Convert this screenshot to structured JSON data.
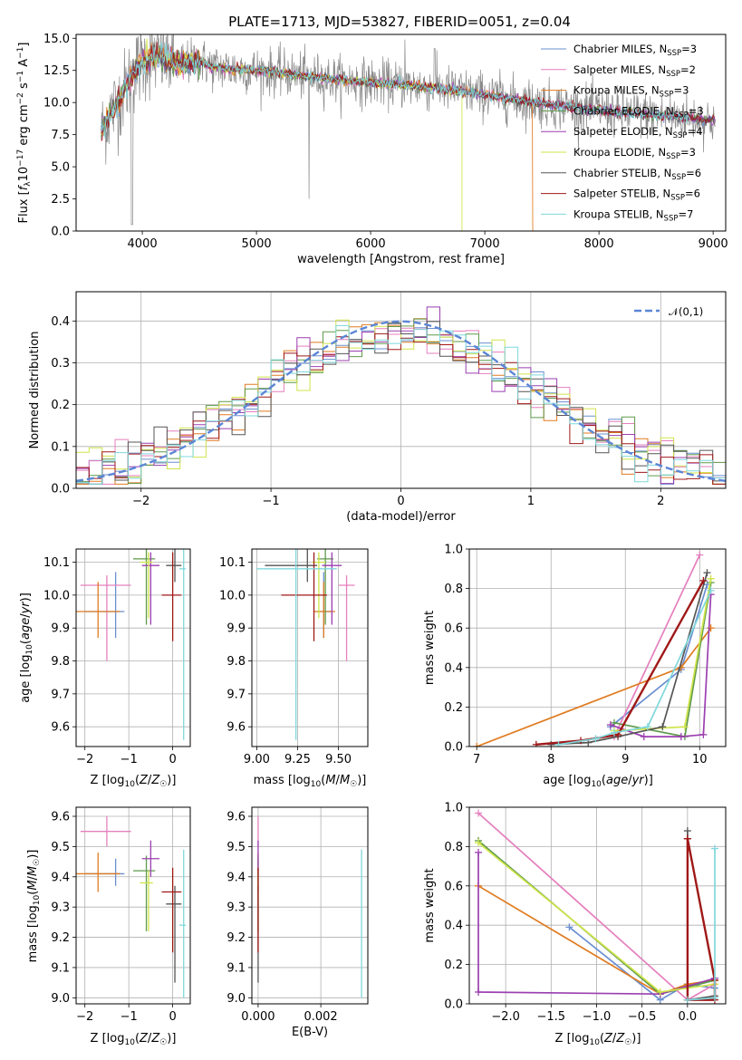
{
  "figure": {
    "title": "PLATE=1713, MJD=53827, FIBERID=0051, z=0.04"
  },
  "series_styles": [
    {
      "name": "Chabrier MILES, N_SSP=3",
      "color": "#6a8fd0"
    },
    {
      "name": "Salpeter MILES, N_SSP=2",
      "color": "#e57fbe"
    },
    {
      "name": "Kroupa MILES, N_SSP=3",
      "color": "#e07b20"
    },
    {
      "name": "Chabrier ELODIE, N_SSP=3",
      "color": "#5f9a4a"
    },
    {
      "name": "Salpeter ELODIE, N_SSP=4",
      "color": "#9b3fb0"
    },
    {
      "name": "Kroupa ELODIE, N_SSP=3",
      "color": "#d0e44a"
    },
    {
      "name": "Chabrier STELIB, N_SSP=6",
      "color": "#555555"
    },
    {
      "name": "Salpeter STELIB, N_SSP=6",
      "color": "#a01818"
    },
    {
      "name": "Kroupa STELIB, N_SSP=7",
      "color": "#7fd8dc"
    }
  ],
  "chart_data": [
    {
      "id": "spectrum",
      "type": "line",
      "title": "PLATE=1713, MJD=53827, FIBERID=0051, z=0.04",
      "xlabel": "wavelength [Angstrom, rest frame]",
      "ylabel": "Flux [f_λ 10^-17 erg cm^-2 s^-1 A^-1]",
      "xlim": [
        3420,
        9110
      ],
      "ylim": [
        0,
        15.3
      ],
      "xticks": [
        4000,
        5000,
        6000,
        7000,
        8000,
        9000
      ],
      "yticks": [
        0.0,
        2.5,
        5.0,
        7.5,
        10.0,
        12.5,
        15.0
      ],
      "legend_position": "top-right",
      "continuum": {
        "x": [
          3640,
          3700,
          3800,
          3900,
          4000,
          4100,
          4200,
          4300,
          4400,
          4500,
          4600,
          4800,
          5000,
          5200,
          5500,
          5800,
          6100,
          6400,
          6700,
          7000,
          7300,
          7600,
          7900,
          8200,
          8500,
          8800,
          9020
        ],
        "y": [
          7.6,
          8.9,
          10.2,
          12.0,
          13.2,
          13.6,
          13.4,
          13.0,
          13.1,
          13.3,
          12.8,
          12.6,
          12.5,
          12.3,
          12.0,
          11.7,
          11.5,
          11.3,
          11.0,
          10.6,
          10.2,
          9.8,
          9.5,
          9.2,
          9.0,
          8.8,
          8.6
        ]
      }
    },
    {
      "id": "residuals",
      "type": "histogram",
      "xlabel": "(data-model)/error",
      "ylabel": "Normed distribution",
      "xlim": [
        -2.5,
        2.5
      ],
      "ylim": [
        0,
        0.47
      ],
      "xticks": [
        -2,
        -1,
        0,
        1,
        2
      ],
      "yticks": [
        0.0,
        0.1,
        0.2,
        0.3,
        0.4
      ],
      "legend": [
        "𝒩(0,1)"
      ],
      "legend_position": "top-right",
      "bin_width": 0.1,
      "base_density": "normal(0,1)"
    },
    {
      "id": "age_vs_Z",
      "type": "errorbar",
      "xlabel": "Z [log10(Z/Z☉)]",
      "ylabel": "age [log10(age/yr)]",
      "xlim": [
        -2.2,
        0.4
      ],
      "ylim": [
        9.54,
        10.14
      ],
      "xticks": [
        -2,
        -1,
        0
      ],
      "yticks": [
        9.6,
        9.7,
        9.8,
        9.9,
        10.0,
        10.1
      ],
      "points": [
        {
          "x": -1.3,
          "xerr": [
            0.7,
            0.2
          ],
          "y": 9.95,
          "yerr": [
            0.08,
            0.12
          ],
          "s": 0
        },
        {
          "x": -1.5,
          "xerr": [
            0.6,
            0.55
          ],
          "y": 10.03,
          "yerr": [
            0.23,
            0.03
          ],
          "s": 1
        },
        {
          "x": -1.7,
          "xerr": [
            0.5,
            0.5
          ],
          "y": 9.95,
          "yerr": [
            0.08,
            0.09
          ],
          "s": 2
        },
        {
          "x": -0.6,
          "xerr": [
            0.3,
            0.2
          ],
          "y": 10.11,
          "yerr": [
            0.2,
            0.03
          ],
          "s": 3
        },
        {
          "x": -0.5,
          "xerr": [
            0.2,
            0.2
          ],
          "y": 10.09,
          "yerr": [
            0.18,
            0.04
          ],
          "s": 4
        },
        {
          "x": -0.55,
          "xerr": [
            0.2,
            0.1
          ],
          "y": 10.1,
          "yerr": [
            0.17,
            0.03
          ],
          "s": 5
        },
        {
          "x": 0.05,
          "xerr": [
            0.2,
            0.15
          ],
          "y": 10.09,
          "yerr": [
            0.05,
            0.05
          ],
          "s": 6
        },
        {
          "x": 0.0,
          "xerr": [
            0.25,
            0.2
          ],
          "y": 10.0,
          "yerr": [
            0.14,
            0.13
          ],
          "s": 7
        },
        {
          "x": 0.25,
          "xerr": [
            0.1,
            0.05
          ],
          "y": 10.08,
          "yerr": [
            0.52,
            0.07
          ],
          "s": 8
        }
      ]
    },
    {
      "id": "age_vs_mass",
      "type": "errorbar",
      "xlabel": "mass [log10(M/M☉)]",
      "ylabel": "",
      "xlim": [
        8.97,
        9.68
      ],
      "ylim": [
        9.54,
        10.14
      ],
      "xticks": [
        9.0,
        9.25,
        9.5
      ],
      "yticks": [
        9.6,
        9.7,
        9.8,
        9.9,
        10.0,
        10.1
      ],
      "points": [
        {
          "x": 9.41,
          "xerr": [
            0.04,
            0.05
          ],
          "y": 9.95,
          "yerr": [
            0.08,
            0.12
          ],
          "s": 0
        },
        {
          "x": 9.55,
          "xerr": [
            0.05,
            0.05
          ],
          "y": 10.03,
          "yerr": [
            0.23,
            0.03
          ],
          "s": 1
        },
        {
          "x": 9.41,
          "xerr": [
            0.06,
            0.07
          ],
          "y": 9.95,
          "yerr": [
            0.08,
            0.09
          ],
          "s": 2
        },
        {
          "x": 9.42,
          "xerr": [
            0.05,
            0.05
          ],
          "y": 10.11,
          "yerr": [
            0.2,
            0.03
          ],
          "s": 3
        },
        {
          "x": 9.46,
          "xerr": [
            0.06,
            0.06
          ],
          "y": 10.09,
          "yerr": [
            0.18,
            0.04
          ],
          "s": 4
        },
        {
          "x": 9.38,
          "xerr": [
            0.04,
            0.04
          ],
          "y": 10.1,
          "yerr": [
            0.17,
            0.03
          ],
          "s": 5
        },
        {
          "x": 9.31,
          "xerr": [
            0.26,
            0.06
          ],
          "y": 10.09,
          "yerr": [
            0.05,
            0.05
          ],
          "s": 6
        },
        {
          "x": 9.35,
          "xerr": [
            0.2,
            0.08
          ],
          "y": 10.0,
          "yerr": [
            0.14,
            0.13
          ],
          "s": 7
        },
        {
          "x": 9.24,
          "xerr": [
            0.24,
            0.25
          ],
          "y": 10.08,
          "yerr": [
            0.52,
            0.07
          ],
          "s": 8
        }
      ]
    },
    {
      "id": "weight_vs_age",
      "type": "line",
      "xlabel": "age [log10(age/yr)]",
      "ylabel": "mass weight",
      "xlim": [
        6.9,
        10.35
      ],
      "ylim": [
        0,
        1.0
      ],
      "xticks": [
        7,
        8,
        9,
        10
      ],
      "yticks": [
        0.0,
        0.2,
        0.4,
        0.6,
        0.8,
        1.0
      ],
      "series": [
        {
          "s": 0,
          "x": [
            8.8,
            9.75,
            10.1
          ],
          "y": [
            0.1,
            0.39,
            0.82
          ]
        },
        {
          "s": 1,
          "x": [
            8.85,
            10.0
          ],
          "y": [
            0.05,
            0.97
          ]
        },
        {
          "s": 2,
          "x": [
            7.0,
            9.75,
            10.15
          ],
          "y": [
            0.0,
            0.4,
            0.6
          ]
        },
        {
          "s": 3,
          "x": [
            8.85,
            9.8,
            10.15
          ],
          "y": [
            0.12,
            0.05,
            0.83
          ]
        },
        {
          "s": 4,
          "x": [
            8.8,
            9.25,
            9.75,
            10.05,
            10.15
          ],
          "y": [
            0.11,
            0.05,
            0.05,
            0.06,
            0.77
          ]
        },
        {
          "s": 5,
          "x": [
            8.85,
            9.8,
            10.15
          ],
          "y": [
            0.08,
            0.1,
            0.85
          ]
        },
        {
          "s": 6,
          "x": [
            8.0,
            8.5,
            8.9,
            9.5,
            10.1
          ],
          "y": [
            0.01,
            0.02,
            0.05,
            0.1,
            0.88
          ]
        },
        {
          "s": 7,
          "x": [
            7.8,
            8.4,
            8.9,
            10.05
          ],
          "y": [
            0.01,
            0.03,
            0.06,
            0.84
          ]
        },
        {
          "s": 8,
          "x": [
            8.1,
            8.6,
            8.85,
            9.3,
            10.15
          ],
          "y": [
            0.01,
            0.04,
            0.07,
            0.1,
            0.79
          ]
        }
      ]
    },
    {
      "id": "mass_vs_Z",
      "type": "errorbar",
      "xlabel": "Z [log10(Z/Z☉)]",
      "ylabel": "mass [log10(M/M☉)]",
      "xlim": [
        -2.2,
        0.4
      ],
      "ylim": [
        8.98,
        9.63
      ],
      "xticks": [
        -2,
        -1,
        0
      ],
      "yticks": [
        9.0,
        9.1,
        9.2,
        9.3,
        9.4,
        9.5,
        9.6
      ],
      "points": [
        {
          "x": -1.3,
          "xerr": [
            0.7,
            0.2
          ],
          "y": 9.41,
          "yerr": [
            0.04,
            0.05
          ],
          "s": 0
        },
        {
          "x": -1.5,
          "xerr": [
            0.6,
            0.55
          ],
          "y": 9.55,
          "yerr": [
            0.05,
            0.05
          ],
          "s": 1
        },
        {
          "x": -1.7,
          "xerr": [
            0.5,
            0.5
          ],
          "y": 9.41,
          "yerr": [
            0.06,
            0.07
          ],
          "s": 2
        },
        {
          "x": -0.6,
          "xerr": [
            0.3,
            0.2
          ],
          "y": 9.42,
          "yerr": [
            0.2,
            0.05
          ],
          "s": 3
        },
        {
          "x": -0.5,
          "xerr": [
            0.2,
            0.2
          ],
          "y": 9.46,
          "yerr": [
            0.06,
            0.06
          ],
          "s": 4
        },
        {
          "x": -0.55,
          "xerr": [
            0.2,
            0.1
          ],
          "y": 9.38,
          "yerr": [
            0.16,
            0.04
          ],
          "s": 5
        },
        {
          "x": 0.05,
          "xerr": [
            0.2,
            0.15
          ],
          "y": 9.31,
          "yerr": [
            0.26,
            0.06
          ],
          "s": 6
        },
        {
          "x": 0.0,
          "xerr": [
            0.25,
            0.2
          ],
          "y": 9.35,
          "yerr": [
            0.2,
            0.08
          ],
          "s": 7
        },
        {
          "x": 0.25,
          "xerr": [
            0.1,
            0.05
          ],
          "y": 9.24,
          "yerr": [
            0.24,
            0.25
          ],
          "s": 8
        }
      ]
    },
    {
      "id": "mass_vs_ebv",
      "type": "errorbar",
      "xlabel": "E(B-V)",
      "ylabel": "",
      "xlim": [
        -0.0002,
        0.0035
      ],
      "ylim": [
        8.98,
        9.63
      ],
      "xticks": [
        0.0,
        0.002
      ],
      "yticks": [
        9.0,
        9.1,
        9.2,
        9.3,
        9.4,
        9.5,
        9.6
      ],
      "points": [
        {
          "x": 0.0,
          "xerr": [
            0,
            0
          ],
          "y": 9.41,
          "yerr": [
            0.04,
            0.05
          ],
          "s": 0
        },
        {
          "x": 0.0,
          "xerr": [
            0,
            0
          ],
          "y": 9.55,
          "yerr": [
            0.05,
            0.05
          ],
          "s": 1
        },
        {
          "x": 0.0,
          "xerr": [
            0,
            0
          ],
          "y": 9.41,
          "yerr": [
            0.06,
            0.07
          ],
          "s": 2
        },
        {
          "x": 0.0,
          "xerr": [
            0,
            0
          ],
          "y": 9.42,
          "yerr": [
            0.2,
            0.05
          ],
          "s": 3
        },
        {
          "x": 0.0,
          "xerr": [
            0,
            0
          ],
          "y": 9.46,
          "yerr": [
            0.06,
            0.06
          ],
          "s": 4
        },
        {
          "x": 0.0,
          "xerr": [
            0,
            0
          ],
          "y": 9.38,
          "yerr": [
            0.16,
            0.04
          ],
          "s": 5
        },
        {
          "x": 0.0,
          "xerr": [
            0,
            0
          ],
          "y": 9.31,
          "yerr": [
            0.26,
            0.06
          ],
          "s": 6
        },
        {
          "x": 0.0,
          "xerr": [
            0,
            0
          ],
          "y": 9.35,
          "yerr": [
            0.2,
            0.08
          ],
          "s": 7
        },
        {
          "x": 0.0033,
          "xerr": [
            0,
            0
          ],
          "y": 9.24,
          "yerr": [
            0.24,
            0.25
          ],
          "s": 8
        }
      ]
    },
    {
      "id": "weight_vs_Z",
      "type": "line",
      "xlabel": "Z [log10(Z/Z☉)]",
      "ylabel": "mass weight",
      "xlim": [
        -2.4,
        0.42
      ],
      "ylim": [
        0,
        1.0
      ],
      "xticks": [
        -2.0,
        -1.5,
        -1.0,
        -0.5,
        0.0
      ],
      "yticks": [
        0.0,
        0.2,
        0.4,
        0.6,
        0.8,
        1.0
      ],
      "series": [
        {
          "s": 0,
          "x": [
            -1.3,
            -0.3,
            0.0,
            0.3
          ],
          "y": [
            0.39,
            0.02,
            0.1,
            0.08
          ]
        },
        {
          "s": 1,
          "x": [
            -2.3,
            0.0,
            0.3
          ],
          "y": [
            0.97,
            0.02,
            0.1
          ]
        },
        {
          "s": 2,
          "x": [
            -2.3,
            -0.3,
            0.0,
            0.3
          ],
          "y": [
            0.6,
            0.05,
            0.1,
            0.12
          ]
        },
        {
          "s": 3,
          "x": [
            -2.3,
            -0.3,
            0.3
          ],
          "y": [
            0.83,
            0.05,
            0.12
          ]
        },
        {
          "s": 4,
          "x": [
            -2.3,
            -2.3,
            -0.3,
            0.3
          ],
          "y": [
            0.77,
            0.06,
            0.05,
            0.13
          ]
        },
        {
          "s": 5,
          "x": [
            -2.3,
            -0.3,
            0.3
          ],
          "y": [
            0.82,
            0.06,
            0.1
          ]
        },
        {
          "s": 6,
          "x": [
            0.0,
            0.0,
            0.3
          ],
          "y": [
            0.88,
            0.02,
            0.04
          ]
        },
        {
          "s": 7,
          "x": [
            0.0,
            0.0,
            0.3,
            0.3,
            0.0
          ],
          "y": [
            0.84,
            0.02,
            0.02,
            0.12,
            0.84
          ]
        },
        {
          "s": 8,
          "x": [
            0.0,
            0.3,
            0.3
          ],
          "y": [
            0.02,
            0.03,
            0.79
          ]
        }
      ]
    }
  ]
}
